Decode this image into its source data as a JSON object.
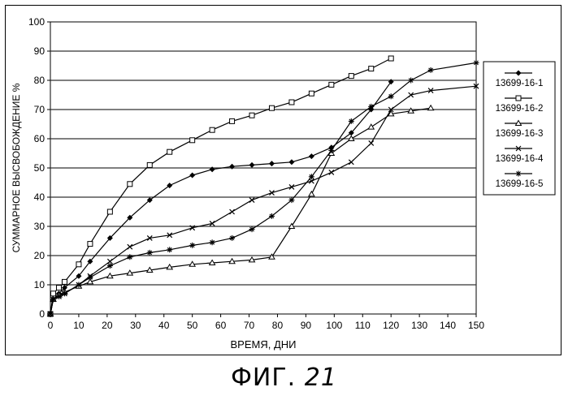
{
  "chart_data": {
    "type": "line",
    "xlabel": "ВРЕМЯ, ДНИ",
    "ylabel": "СУММАРНОЕ ВЫСВОБОЖДЕНИЕ %",
    "xlim": [
      0,
      150
    ],
    "ylim": [
      0,
      100
    ],
    "x_ticks": [
      0,
      10,
      20,
      30,
      40,
      50,
      60,
      70,
      80,
      90,
      100,
      110,
      120,
      130,
      140,
      150
    ],
    "y_ticks": [
      0,
      10,
      20,
      30,
      40,
      50,
      60,
      70,
      80,
      90,
      100
    ],
    "grid": "horizontal",
    "legend_position": "right",
    "series": [
      {
        "name": "13699-16-1",
        "marker": "diamond",
        "x": [
          0,
          1,
          3,
          5,
          10,
          14,
          21,
          28,
          35,
          42,
          50,
          57,
          64,
          71,
          78,
          85,
          92,
          99,
          106,
          113,
          120
        ],
        "y": [
          0,
          5,
          7,
          9,
          13,
          18,
          26,
          33,
          39,
          44,
          47.5,
          49.5,
          50.5,
          51,
          51.5,
          52,
          54,
          57,
          62,
          70,
          79.5
        ]
      },
      {
        "name": "13699-16-2",
        "marker": "square",
        "x": [
          0,
          1,
          3,
          5,
          10,
          14,
          21,
          28,
          35,
          42,
          50,
          57,
          64,
          71,
          78,
          85,
          92,
          99,
          106,
          113,
          120
        ],
        "y": [
          0,
          7,
          9,
          11,
          17,
          24,
          35,
          44.5,
          51,
          55.5,
          59.5,
          63,
          66,
          68,
          70.5,
          72.5,
          75.5,
          78.5,
          81.5,
          84,
          87.5
        ]
      },
      {
        "name": "13699-16-3",
        "marker": "triangle",
        "x": [
          0,
          1,
          3,
          5,
          10,
          14,
          21,
          28,
          35,
          42,
          50,
          57,
          64,
          71,
          78,
          85,
          92,
          99,
          106,
          113,
          120,
          127,
          134
        ],
        "y": [
          0,
          5,
          6.5,
          7.5,
          9.5,
          11,
          13,
          14,
          15,
          16,
          17,
          17.5,
          18,
          18.5,
          19.5,
          30,
          41,
          55,
          60,
          64,
          68.5,
          69.5,
          70.5
        ]
      },
      {
        "name": "13699-16-4",
        "marker": "x",
        "x": [
          0,
          1,
          3,
          5,
          10,
          14,
          21,
          28,
          35,
          42,
          50,
          57,
          64,
          71,
          78,
          85,
          92,
          99,
          106,
          113,
          120,
          127,
          134,
          150
        ],
        "y": [
          0,
          5,
          6,
          7,
          10,
          13,
          18,
          23,
          26,
          27,
          29.5,
          31,
          35,
          39,
          41.5,
          43.5,
          45.5,
          48.5,
          52,
          58.5,
          70,
          75,
          76.5,
          78
        ]
      },
      {
        "name": "13699-16-5",
        "marker": "star",
        "x": [
          0,
          1,
          3,
          5,
          10,
          14,
          21,
          28,
          35,
          42,
          50,
          57,
          64,
          71,
          78,
          85,
          92,
          99,
          106,
          113,
          120,
          127,
          134,
          150
        ],
        "y": [
          0,
          5,
          6,
          7,
          10,
          12.5,
          16.5,
          19.5,
          21,
          22,
          23.5,
          24.5,
          26,
          29,
          33.5,
          39,
          47,
          56,
          66,
          71,
          74.5,
          80,
          83.5,
          86
        ]
      }
    ]
  },
  "caption": {
    "prefix": "ФИГ.",
    "number": "21"
  }
}
